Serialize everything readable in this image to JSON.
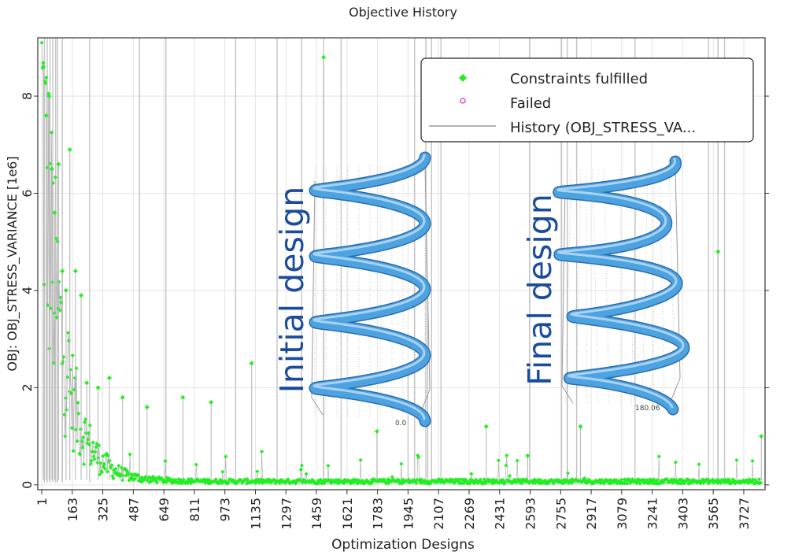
{
  "chart_data": {
    "type": "scatter",
    "title": "Objective History",
    "xlabel": "Optimization Designs",
    "ylabel": "OBJ: OBJ_STRESS_VARIANCE [1e6]",
    "xlim": [
      -20,
      3840
    ],
    "ylim": [
      -0.1,
      9.2
    ],
    "x_ticks": [
      "1",
      "163",
      "325",
      "487",
      "649",
      "811",
      "973",
      "1135",
      "1297",
      "1459",
      "1621",
      "1783",
      "1945",
      "2107",
      "2269",
      "2431",
      "2593",
      "2755",
      "2917",
      "3079",
      "3241",
      "3403",
      "3565",
      "3727"
    ],
    "y_ticks": [
      "0",
      "2",
      "4",
      "6",
      "8"
    ],
    "grid": true,
    "legend_position": "top-right",
    "legend": [
      "Constraints fulfilled",
      "Failed",
      "History (OBJ_STRESS_VA..."
    ],
    "colors": {
      "fulfilled": "#22ee22",
      "failed": "#dd22dd",
      "history": "#b3b3b3",
      "spring": "#4da3e0",
      "annotation": "#1a4c9e"
    },
    "series": [
      {
        "name": "Constraints fulfilled",
        "highlight_points": [
          {
            "x": 10,
            "y": 8.6
          },
          {
            "x": 25,
            "y": 7.6
          },
          {
            "x": 40,
            "y": 8.0
          },
          {
            "x": 55,
            "y": 6.5
          },
          {
            "x": 70,
            "y": 5.6
          },
          {
            "x": 90,
            "y": 6.6
          },
          {
            "x": 110,
            "y": 4.4
          },
          {
            "x": 130,
            "y": 4.0
          },
          {
            "x": 150,
            "y": 6.9
          },
          {
            "x": 180,
            "y": 4.4
          },
          {
            "x": 210,
            "y": 3.9
          },
          {
            "x": 240,
            "y": 2.1
          },
          {
            "x": 300,
            "y": 2.0
          },
          {
            "x": 360,
            "y": 2.2
          },
          {
            "x": 430,
            "y": 1.8
          },
          {
            "x": 560,
            "y": 1.6
          },
          {
            "x": 750,
            "y": 1.8
          },
          {
            "x": 900,
            "y": 1.7
          },
          {
            "x": 1115,
            "y": 2.5
          },
          {
            "x": 1497,
            "y": 8.8
          },
          {
            "x": 1780,
            "y": 1.1
          },
          {
            "x": 1945,
            "y": 2.3
          },
          {
            "x": 2050,
            "y": 4.1
          },
          {
            "x": 2360,
            "y": 1.2
          },
          {
            "x": 2580,
            "y": 0.6
          },
          {
            "x": 2790,
            "y": 4.7
          },
          {
            "x": 2860,
            "y": 1.2
          },
          {
            "x": 3590,
            "y": 4.8
          },
          {
            "x": 3820,
            "y": 1.0
          }
        ]
      },
      {
        "name": "Failed",
        "highlight_points": []
      },
      {
        "name": "History (OBJ_STRESS_VA...",
        "trend": "decaying from ~9 at design 1 to ~0.1 after design 1000"
      }
    ]
  },
  "annotations": {
    "initial_label": "Initial design",
    "final_label": "Final design",
    "initial_dimension": "0.0",
    "final_dimension": "180.06"
  }
}
